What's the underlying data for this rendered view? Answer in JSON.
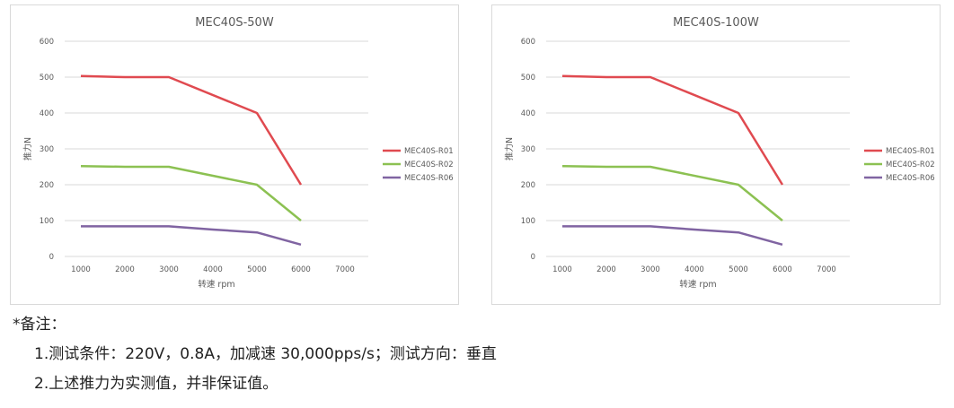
{
  "chart_data": [
    {
      "type": "line",
      "title": "MEC40S-50W",
      "xlabel": "转速 rpm",
      "ylabel": "推力N",
      "x_ticks": [
        1000,
        2000,
        3000,
        4000,
        5000,
        6000,
        7000
      ],
      "y_ticks": [
        0,
        100,
        200,
        300,
        400,
        500,
        600
      ],
      "xlim": [
        1000,
        7000
      ],
      "ylim": [
        0,
        600
      ],
      "grid": "horizontal",
      "legend_position": "right",
      "series": [
        {
          "name": "MEC40S-R01",
          "color": "#e04a50",
          "x": [
            1000,
            2000,
            3000,
            5000,
            6000
          ],
          "y": [
            503,
            500,
            500,
            400,
            200
          ]
        },
        {
          "name": "MEC40S-R02",
          "color": "#8cc152",
          "x": [
            1000,
            2000,
            3000,
            5000,
            6000
          ],
          "y": [
            252,
            250,
            250,
            200,
            100
          ]
        },
        {
          "name": "MEC40S-R06",
          "color": "#8064a2",
          "x": [
            1000,
            2000,
            3000,
            4000,
            5000,
            6000
          ],
          "y": [
            84,
            84,
            84,
            75,
            67,
            33
          ]
        }
      ]
    },
    {
      "type": "line",
      "title": "MEC40S-100W",
      "xlabel": "转速 rpm",
      "ylabel": "推力N",
      "x_ticks": [
        1000,
        2000,
        3000,
        4000,
        5000,
        6000,
        7000
      ],
      "y_ticks": [
        0,
        100,
        200,
        300,
        400,
        500,
        600
      ],
      "xlim": [
        1000,
        7000
      ],
      "ylim": [
        0,
        600
      ],
      "grid": "horizontal",
      "legend_position": "right",
      "series": [
        {
          "name": "MEC40S-R01",
          "color": "#e04a50",
          "x": [
            1000,
            2000,
            3000,
            5000,
            6000
          ],
          "y": [
            503,
            500,
            500,
            400,
            200
          ]
        },
        {
          "name": "MEC40S-R02",
          "color": "#8cc152",
          "x": [
            1000,
            2000,
            3000,
            5000,
            6000
          ],
          "y": [
            252,
            250,
            250,
            200,
            100
          ]
        },
        {
          "name": "MEC40S-R06",
          "color": "#8064a2",
          "x": [
            1000,
            2000,
            3000,
            4000,
            5000,
            6000
          ],
          "y": [
            84,
            84,
            84,
            75,
            67,
            33
          ]
        }
      ]
    }
  ],
  "notes": {
    "heading": "*备注：",
    "items": [
      "1.测试条件：220V，0.8A，加减速 30,000pps/s；测试方向：垂直",
      "2.上述推力为实测值，并非保证值。"
    ]
  }
}
